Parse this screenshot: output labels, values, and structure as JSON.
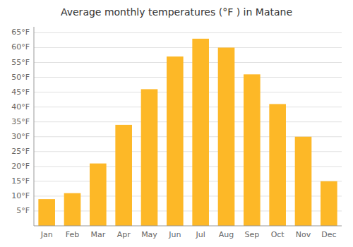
{
  "chart_data": {
    "type": "bar",
    "title": "Average monthly temperatures (°F ) in Matane",
    "categories": [
      "Jan",
      "Feb",
      "Mar",
      "Apr",
      "May",
      "Jun",
      "Jul",
      "Aug",
      "Sep",
      "Oct",
      "Nov",
      "Dec"
    ],
    "values": [
      9,
      11,
      21,
      34,
      46,
      57,
      63,
      60,
      51,
      41,
      30,
      15
    ],
    "color": "#FDB827",
    "ylim": [
      0,
      67
    ],
    "yticks": [
      {
        "value": 5,
        "label": "5°F"
      },
      {
        "value": 10,
        "label": "10°F"
      },
      {
        "value": 15,
        "label": "15°F"
      },
      {
        "value": 20,
        "label": "20°F"
      },
      {
        "value": 25,
        "label": "25°F"
      },
      {
        "value": 30,
        "label": "30°F"
      },
      {
        "value": 35,
        "label": "35°F"
      },
      {
        "value": 40,
        "label": "40°F"
      },
      {
        "value": 45,
        "label": "45°F"
      },
      {
        "value": 50,
        "label": "50°F"
      },
      {
        "value": 55,
        "label": "55°F"
      },
      {
        "value": 60,
        "label": "60°F"
      },
      {
        "value": 65,
        "label": "65°F"
      }
    ],
    "grid": true
  }
}
